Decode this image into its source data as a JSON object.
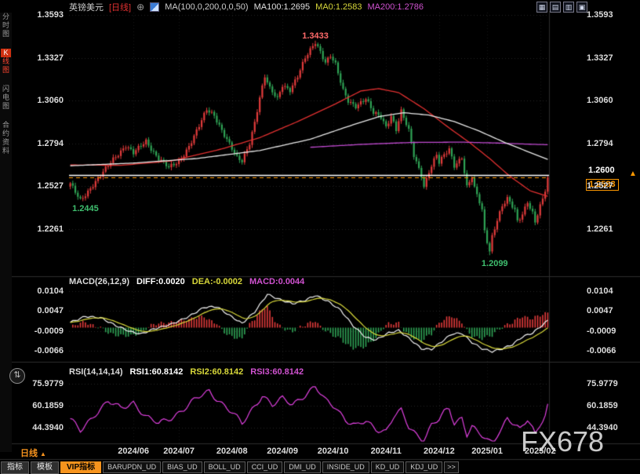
{
  "top_bar": {
    "symbol": "英镑美元",
    "period": "[日线]",
    "plus_icon": "⊕",
    "ma_settings": "MA(100,0,200,0,0,50)",
    "ma100": "MA100:1.2695",
    "ma0": "MA0:1.2583",
    "ma200": "MA200:1.2786",
    "window_controls": [
      "▦",
      "▤",
      "▥",
      "▣"
    ]
  },
  "icons": {
    "up_triangle": "▲",
    "price_arrow": "▲",
    "quick_nav": "⇅"
  },
  "sidebar": {
    "items": [
      {
        "label": "分时图",
        "active": false
      },
      {
        "label": "K线图",
        "active": true
      },
      {
        "label": "闪电图",
        "active": false
      },
      {
        "label": "合约资料",
        "active": false
      }
    ]
  },
  "macd_header": {
    "name": "MACD(26,12,9)",
    "diff": "DIFF:0.0020",
    "dea": "DEA:-0.0002",
    "macd": "MACD:0.0044"
  },
  "rsi_header": {
    "name": "RSI(14,14,14)",
    "rsi1": "RSI1:60.8142",
    "rsi2": "RSI2:60.8142",
    "rsi3": "RSI3:60.8142"
  },
  "bottom": {
    "period_label": "日线",
    "tabs": [
      {
        "label": "指标",
        "style": "btn"
      },
      {
        "label": "模板",
        "style": "btn"
      },
      {
        "label": "VIP指标",
        "style": "vip"
      },
      {
        "label": "BARUPDN_UD",
        "style": "preset"
      },
      {
        "label": "BIAS_UD",
        "style": "preset"
      },
      {
        "label": "BOLL_UD",
        "style": "preset"
      },
      {
        "label": "CCI_UD",
        "style": "preset"
      },
      {
        "label": "DMI_UD",
        "style": "preset"
      },
      {
        "label": "INSIDE_UD",
        "style": "preset"
      },
      {
        "label": "KD_UD",
        "style": "preset"
      },
      {
        "label": "KDJ_UD",
        "style": "preset"
      }
    ],
    "more": ">>"
  },
  "watermark": "FX678",
  "chart_data": {
    "type": "candlestick",
    "symbol": "英镑美元 (GBP/USD)",
    "timeframe": "日线",
    "bars": 190,
    "up_color": "#e23b3b",
    "down_color": "#2fa355",
    "price_axis": {
      "tick_labels": [
        "1.3593",
        "1.3327",
        "1.3060",
        "1.2794",
        "1.2527",
        "1.2261"
      ]
    },
    "macd_axis": {
      "tick_labels": [
        "0.0104",
        "0.0047",
        "-0.0009",
        "-0.0066"
      ]
    },
    "rsi_axis": {
      "tick_labels": [
        "75.9779",
        "60.1859",
        "44.3940"
      ]
    },
    "x_axis": {
      "ticks": [
        {
          "label": "2024/06",
          "bar": 25
        },
        {
          "label": "2024/07",
          "bar": 43
        },
        {
          "label": "2024/08",
          "bar": 64
        },
        {
          "label": "2024/09",
          "bar": 84
        },
        {
          "label": "2024/10",
          "bar": 104
        },
        {
          "label": "2024/11",
          "bar": 125
        },
        {
          "label": "2024/12",
          "bar": 146
        },
        {
          "label": "2025/01",
          "bar": 165
        },
        {
          "label": "2025/02",
          "bar": 186
        }
      ]
    },
    "close_path": [
      [
        0,
        1.254
      ],
      [
        4,
        1.2446
      ],
      [
        8,
        1.2515
      ],
      [
        12,
        1.259
      ],
      [
        17,
        1.27
      ],
      [
        22,
        1.278
      ],
      [
        25,
        1.273
      ],
      [
        30,
        1.281
      ],
      [
        34,
        1.272
      ],
      [
        39,
        1.264
      ],
      [
        43,
        1.268
      ],
      [
        47,
        1.278
      ],
      [
        51,
        1.29
      ],
      [
        54,
        1.3
      ],
      [
        57,
        1.297
      ],
      [
        60,
        1.288
      ],
      [
        63,
        1.279
      ],
      [
        66,
        1.27
      ],
      [
        68,
        1.268
      ],
      [
        71,
        1.28
      ],
      [
        73,
        1.293
      ],
      [
        75,
        1.308
      ],
      [
        77,
        1.321
      ],
      [
        79,
        1.313
      ],
      [
        82,
        1.307
      ],
      [
        84,
        1.316
      ],
      [
        87,
        1.313
      ],
      [
        90,
        1.321
      ],
      [
        93,
        1.332
      ],
      [
        97,
        1.3425
      ],
      [
        99,
        1.337
      ],
      [
        101,
        1.33
      ],
      [
        103,
        1.334
      ],
      [
        105,
        1.328
      ],
      [
        108,
        1.312
      ],
      [
        110,
        1.306
      ],
      [
        113,
        1.303
      ],
      [
        117,
        1.307
      ],
      [
        120,
        1.298
      ],
      [
        123,
        1.296
      ],
      [
        125,
        1.29
      ],
      [
        127,
        1.297
      ],
      [
        129,
        1.288
      ],
      [
        131,
        1.299
      ],
      [
        134,
        1.287
      ],
      [
        136,
        1.272
      ],
      [
        139,
        1.26
      ],
      [
        140,
        1.253
      ],
      [
        142,
        1.262
      ],
      [
        145,
        1.272
      ],
      [
        146,
        1.267
      ],
      [
        148,
        1.272
      ],
      [
        150,
        1.276
      ],
      [
        152,
        1.266
      ],
      [
        155,
        1.271
      ],
      [
        157,
        1.252
      ],
      [
        159,
        1.258
      ],
      [
        160,
        1.251
      ],
      [
        162,
        1.243
      ],
      [
        163,
        1.238
      ],
      [
        164,
        1.225
      ],
      [
        166,
        1.213
      ],
      [
        167,
        1.222
      ],
      [
        169,
        1.232
      ],
      [
        171,
        1.24
      ],
      [
        173,
        1.2445
      ],
      [
        176,
        1.238
      ],
      [
        177,
        1.231
      ],
      [
        179,
        1.236
      ],
      [
        181,
        1.2435
      ],
      [
        183,
        1.236
      ],
      [
        184,
        1.23
      ],
      [
        186,
        1.24
      ],
      [
        187,
        1.244
      ],
      [
        188,
        1.25
      ],
      [
        189,
        1.2583
      ]
    ],
    "key_points": {
      "high": {
        "bar": 97,
        "price": 1.3433
      },
      "low_start": {
        "bar": 4,
        "price": 1.2445
      },
      "low_jan": {
        "bar": 166,
        "price": 1.2099
      },
      "last_close": 1.2583
    },
    "ma_lines": [
      {
        "name": "MA50",
        "color": "#e03030",
        "path": [
          [
            0,
            1.266
          ],
          [
            20,
            1.2658
          ],
          [
            40,
            1.2685
          ],
          [
            60,
            1.276
          ],
          [
            75,
            1.283
          ],
          [
            90,
            1.293
          ],
          [
            105,
            1.304
          ],
          [
            115,
            1.312
          ],
          [
            122,
            1.3135
          ],
          [
            130,
            1.311
          ],
          [
            140,
            1.301
          ],
          [
            150,
            1.289
          ],
          [
            158,
            1.28
          ],
          [
            166,
            1.27
          ],
          [
            174,
            1.259
          ],
          [
            182,
            1.25
          ],
          [
            189,
            1.2465
          ]
        ]
      },
      {
        "name": "MA200",
        "color": "#c04ad0",
        "path": [
          [
            95,
            1.277
          ],
          [
            115,
            1.2788
          ],
          [
            135,
            1.28
          ],
          [
            155,
            1.2802
          ],
          [
            170,
            1.2796
          ],
          [
            180,
            1.279
          ],
          [
            189,
            1.2786
          ]
        ]
      },
      {
        "name": "MA100",
        "color": "#e8e8e8",
        "path": [
          [
            0,
            1.2655
          ],
          [
            25,
            1.2672
          ],
          [
            50,
            1.27
          ],
          [
            75,
            1.275
          ],
          [
            95,
            1.282
          ],
          [
            110,
            1.29
          ],
          [
            122,
            1.296
          ],
          [
            132,
            1.2985
          ],
          [
            142,
            1.297
          ],
          [
            152,
            1.293
          ],
          [
            162,
            1.287
          ],
          [
            172,
            1.28
          ],
          [
            180,
            1.275
          ],
          [
            189,
            1.2695
          ]
        ]
      }
    ],
    "levels": [
      {
        "price": 1.26,
        "label": "1.2600",
        "color": "#ffffff",
        "style": "solid"
      },
      {
        "price": 1.2583,
        "label": "1.2583",
        "color": "#ff9900",
        "style": "dashed"
      }
    ],
    "annotations": [
      {
        "text": "1.3433",
        "bar": 97,
        "price": 1.3455,
        "color": "#ff6a6a"
      },
      {
        "text": "1.2445",
        "bar": 6,
        "price": 1.2385,
        "color": "#3fbf6f"
      },
      {
        "text": "1.2099",
        "bar": 168,
        "price": 1.204,
        "color": "#3fbf6f"
      }
    ],
    "macd": {
      "params": "26,12,9",
      "diff": 0.002,
      "dea": -0.0002,
      "macd": 0.0044,
      "histogram_rule": "2*(DIFF-DEA)",
      "diff_path": [
        [
          0,
          0.0015
        ],
        [
          6,
          0.0032
        ],
        [
          12,
          0.0028
        ],
        [
          18,
          0.0006
        ],
        [
          24,
          -0.0012
        ],
        [
          28,
          -0.0018
        ],
        [
          33,
          -0.0004
        ],
        [
          40,
          0.001
        ],
        [
          47,
          0.0032
        ],
        [
          53,
          0.0058
        ],
        [
          58,
          0.006
        ],
        [
          63,
          0.0035
        ],
        [
          68,
          0.0012
        ],
        [
          73,
          0.0045
        ],
        [
          78,
          0.0095
        ],
        [
          83,
          0.008
        ],
        [
          88,
          0.0068
        ],
        [
          93,
          0.0078
        ],
        [
          97,
          0.0092
        ],
        [
          102,
          0.0075
        ],
        [
          107,
          0.005
        ],
        [
          112,
          0.0005
        ],
        [
          117,
          -0.0028
        ],
        [
          121,
          -0.0035
        ],
        [
          126,
          -0.0015
        ],
        [
          130,
          -0.0008
        ],
        [
          134,
          -0.003
        ],
        [
          139,
          -0.006
        ],
        [
          143,
          -0.0062
        ],
        [
          147,
          -0.004
        ],
        [
          151,
          -0.0018
        ],
        [
          155,
          -0.0016
        ],
        [
          159,
          -0.0042
        ],
        [
          163,
          -0.006
        ],
        [
          167,
          -0.0068
        ],
        [
          171,
          -0.006
        ],
        [
          175,
          -0.0048
        ],
        [
          179,
          -0.0026
        ],
        [
          183,
          -0.0015
        ],
        [
          186,
          0.0002
        ],
        [
          189,
          0.002
        ]
      ]
    },
    "rsi": {
      "params": "14,14,14",
      "rsi1": 60.8142,
      "rsi2": 60.8142,
      "rsi3": 60.8142
    },
    "rsi_path": [
      [
        0,
        50
      ],
      [
        4,
        42
      ],
      [
        10,
        55
      ],
      [
        15,
        63
      ],
      [
        20,
        58
      ],
      [
        25,
        63
      ],
      [
        30,
        52
      ],
      [
        35,
        47
      ],
      [
        40,
        52
      ],
      [
        45,
        58
      ],
      [
        50,
        65
      ],
      [
        55,
        71
      ],
      [
        60,
        62
      ],
      [
        64,
        55
      ],
      [
        68,
        47
      ],
      [
        72,
        58
      ],
      [
        76,
        68
      ],
      [
        80,
        60
      ],
      [
        84,
        65
      ],
      [
        88,
        62
      ],
      [
        93,
        68
      ],
      [
        97,
        73
      ],
      [
        101,
        64
      ],
      [
        105,
        60
      ],
      [
        109,
        50
      ],
      [
        113,
        45
      ],
      [
        117,
        49
      ],
      [
        121,
        44
      ],
      [
        125,
        42
      ],
      [
        128,
        52
      ],
      [
        131,
        56
      ],
      [
        134,
        45
      ],
      [
        137,
        40
      ],
      [
        140,
        36
      ],
      [
        143,
        46
      ],
      [
        146,
        50
      ],
      [
        148,
        55
      ],
      [
        150,
        58
      ],
      [
        152,
        48
      ],
      [
        155,
        52
      ],
      [
        157,
        40
      ],
      [
        159,
        45
      ],
      [
        161,
        41
      ],
      [
        163,
        38
      ],
      [
        165,
        35
      ],
      [
        167,
        33
      ],
      [
        169,
        40
      ],
      [
        171,
        45
      ],
      [
        173,
        52
      ],
      [
        176,
        46
      ],
      [
        178,
        42
      ],
      [
        181,
        50
      ],
      [
        183,
        44
      ],
      [
        184,
        40
      ],
      [
        186,
        48
      ],
      [
        188,
        54
      ],
      [
        189,
        60.8
      ]
    ]
  }
}
